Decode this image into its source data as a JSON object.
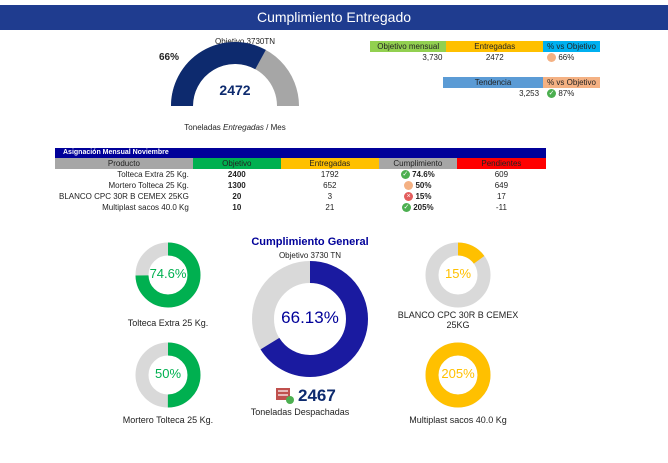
{
  "header": {
    "title": "Cumplimiento Entregado"
  },
  "gauge": {
    "objective_label": "Objetivo 3730TN",
    "percent_label": "66%",
    "value": "2472",
    "fraction": 0.66,
    "caption_pre": "Toneladas ",
    "caption_em": "Entregadas",
    "caption_post": " / Mes",
    "color": "#0d2a6e",
    "rest_color": "#a6a6a6"
  },
  "summary": {
    "headers": [
      "Objetivo mensual",
      "Entregadas",
      "% vs Objetivo"
    ],
    "values": [
      "3,730",
      "2472",
      "66%"
    ],
    "trend_headers": [
      "Tendencia",
      "% vs Objetivo"
    ],
    "trend_values": [
      "3,253",
      "87%"
    ]
  },
  "assignment": {
    "title": "Asignación Mensual Noviembre",
    "headers": [
      "Producto",
      "Objetivo",
      "Entregadas",
      "Cumplimiento",
      "Pendientes"
    ],
    "rows": [
      {
        "product": "Tolteca Extra 25 Kg.",
        "objective": "2400",
        "delivered": "1792",
        "status": "ok",
        "pct": "74.6%",
        "pending": "609"
      },
      {
        "product": "Mortero Tolteca 25 Kg.",
        "objective": "1300",
        "delivered": "652",
        "status": "warn",
        "pct": "50%",
        "pending": "649"
      },
      {
        "product": "BLANCO CPC 30R B CEMEX 25KG",
        "objective": "20",
        "delivered": "3",
        "status": "bad",
        "pct": "15%",
        "pending": "17"
      },
      {
        "product": "Multiplast sacos 40.0 Kg",
        "objective": "10",
        "delivered": "21",
        "status": "ok",
        "pct": "205%",
        "pending": "-11"
      }
    ]
  },
  "general": {
    "title": "Cumplimiento General",
    "objective_label": "Objetivo 3730 TN",
    "percent_label": "66.13%",
    "fraction": 0.6613,
    "value": "2467",
    "caption": "Toneladas Despachadas",
    "color": "#1a1aa0",
    "rest_color": "#d9d9d9"
  },
  "donuts": [
    {
      "percent_label": "74.6%",
      "fraction": 0.746,
      "label": "Tolteca Extra 25 Kg.",
      "color": "#00b050"
    },
    {
      "percent_label": "50%",
      "fraction": 0.5,
      "label": "Mortero Tolteca 25 Kg.",
      "color": "#00b050"
    },
    {
      "percent_label": "15%",
      "fraction": 0.15,
      "label_line1": "BLANCO CPC 30R B CEMEX",
      "label_line2": "25KG",
      "color": "#ffc000"
    },
    {
      "percent_label": "205%",
      "fraction": 1.0,
      "label": "Multiplast sacos 40.0 Kg",
      "color": "#ffc000"
    }
  ],
  "colors": {
    "banner": "#1f3c8f",
    "green_header": "#00b050",
    "light_green_header": "#92d050",
    "yellow_header": "#ffc000",
    "blue_header": "#00b0f0",
    "gray_header": "#a6a6a6",
    "red_header": "#ff0000",
    "navy_title": "#000099",
    "trend_blue": "#5b9bd5",
    "trend_salmon": "#f4b183"
  }
}
